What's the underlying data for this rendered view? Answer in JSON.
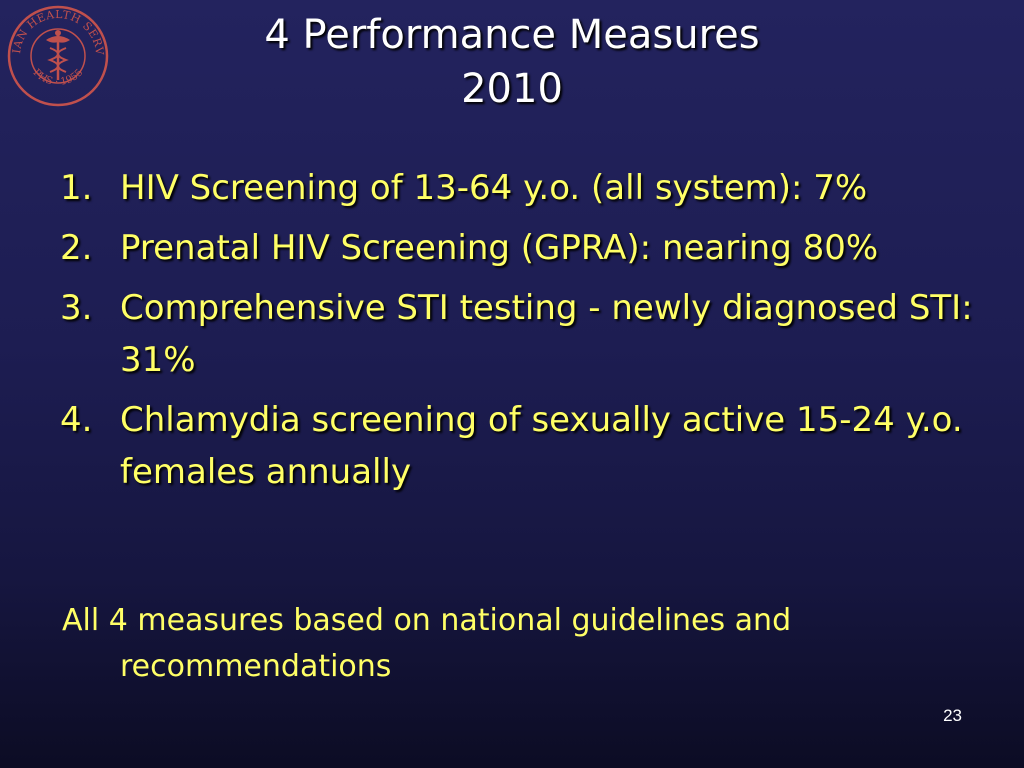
{
  "logo": {
    "top_text": "INDIAN HEALTH SERVICE",
    "bottom_text": "PHS · 1955",
    "color": "#c0504d"
  },
  "title": {
    "line1": "4 Performance Measures",
    "line2": "2010"
  },
  "measures": [
    {
      "number": "1.",
      "text": "HIV Screening of 13-64 y.o. (all system): 7%"
    },
    {
      "number": "2.",
      "text": "Prenatal HIV Screening (GPRA): nearing 80%"
    },
    {
      "number": "3.",
      "text": "Comprehensive STI testing - newly diagnosed STI: 31%"
    },
    {
      "number": "4.",
      "text": "Chlamydia screening of sexually active 15-24 y.o. females annually"
    }
  ],
  "footnote": "All 4 measures based on national guidelines and recommendations",
  "page_number": "23",
  "colors": {
    "title": "#ffffff",
    "body_text": "#ffff66",
    "background_top": "#23235e",
    "background_bottom": "#0c0c24"
  }
}
